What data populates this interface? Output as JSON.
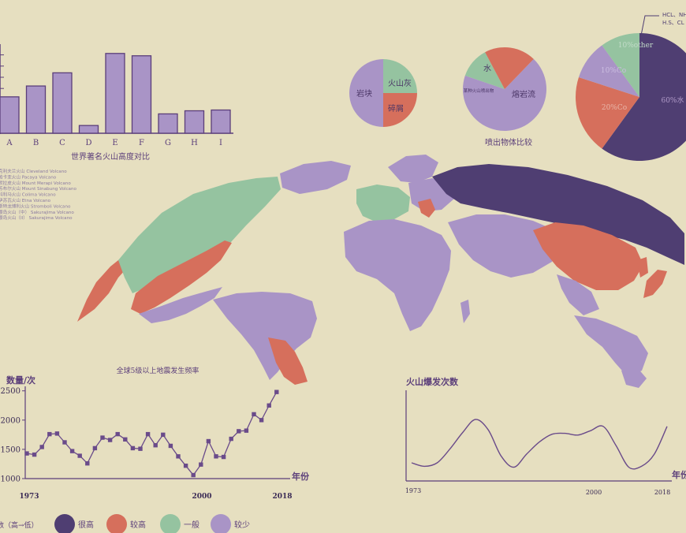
{
  "palette": {
    "very_high": "#4f3e72",
    "high": "#d66f5c",
    "medium": "#95c3a0",
    "low": "#a994c6",
    "axis": "#5b3e7a",
    "bg": "#e6dfc0"
  },
  "chart_data": [
    {
      "type": "bar",
      "title": "世界著名火山高度对比",
      "categories": [
        "A",
        "B",
        "C",
        "D",
        "E",
        "F",
        "G",
        "H",
        "I"
      ],
      "values": [
        4.7,
        6.1,
        7.8,
        1.0,
        10.3,
        10.0,
        2.5,
        2.9,
        3.0
      ],
      "ylim": [
        0,
        11.5
      ]
    },
    {
      "type": "pie",
      "slices": [
        {
          "label": "岩块",
          "value": 50,
          "color": "#a994c6"
        },
        {
          "label": "火山灰",
          "value": 25,
          "color": "#95c3a0"
        },
        {
          "label": "碎屑",
          "value": 25,
          "color": "#d66f5c"
        }
      ]
    },
    {
      "type": "pie",
      "title": "喷出物体比较",
      "slices": [
        {
          "label": "熔岩流",
          "value": 68,
          "color": "#a994c6"
        },
        {
          "label": "某种火山喷出物",
          "value": 12,
          "color": "#95c3a0"
        },
        {
          "label": "水",
          "value": 20,
          "color": "#d66f5c"
        }
      ]
    },
    {
      "type": "pie",
      "slices": [
        {
          "label": "60%水",
          "value": 60,
          "color": "#4f3e72"
        },
        {
          "label": "20%Co",
          "value": 20,
          "color": "#d66f5c"
        },
        {
          "label": "10%Co",
          "value": 10,
          "color": "#a994c6"
        },
        {
          "label": "10%other",
          "value": 10,
          "color": "#95c3a0"
        }
      ],
      "callout": [
        "HCL、NH",
        "H.S、CL"
      ]
    },
    {
      "type": "line",
      "title": "全球5级以上地震发生频率",
      "ylabel": "数量/次",
      "xlabel": "年份",
      "yticks": [
        1000,
        1500,
        2000,
        2500
      ],
      "ylim": [
        1000,
        2600
      ],
      "x": [
        1973,
        1975,
        1977,
        1979,
        1981,
        1983,
        1985,
        1987,
        1989,
        1991,
        1993,
        1995,
        1997,
        1999,
        2001,
        2003,
        2005,
        2007,
        2009,
        2011,
        2013,
        2015,
        2017,
        2019,
        2021,
        2023,
        2025,
        2027,
        2029,
        2031,
        2033
      ],
      "values": [
        1430,
        1410,
        1540,
        1760,
        1770,
        1620,
        1470,
        1390,
        1260,
        1520,
        1700,
        1660,
        1760,
        1670,
        1520,
        1510,
        1760,
        1570,
        1750,
        1560,
        1380,
        1220,
        1060,
        1240,
        1640,
        1380,
        1370,
        1680,
        1810,
        1820,
        2100
      ],
      "extra_points": [
        [
          2035,
          2000
        ],
        [
          2037,
          2250
        ],
        [
          2039,
          2480
        ]
      ],
      "xtick_labels": [
        {
          "x": 1973,
          "label": "1973"
        },
        {
          "x": 2000,
          "label": "2000"
        },
        {
          "x": 2018,
          "label": "2018"
        }
      ]
    },
    {
      "type": "line",
      "title": "火山爆发次数",
      "xlabel": "年份",
      "xtick_labels": [
        "1973",
        "2000",
        "2018"
      ],
      "x": [
        0,
        0.05,
        0.1,
        0.15,
        0.2,
        0.25,
        0.3,
        0.35,
        0.4,
        0.45,
        0.5,
        0.55,
        0.6,
        0.65,
        0.7,
        0.75,
        0.8,
        0.85,
        0.9,
        0.95,
        1.0
      ],
      "values": [
        0.1,
        0.06,
        0.1,
        0.26,
        0.45,
        0.6,
        0.48,
        0.18,
        0.05,
        0.2,
        0.34,
        0.43,
        0.44,
        0.42,
        0.47,
        0.52,
        0.3,
        0.05,
        0.06,
        0.2,
        0.52
      ]
    }
  ],
  "legend": {
    "prefix": "数（高→低）",
    "items": [
      {
        "label": "很高",
        "color": "#4f3e72"
      },
      {
        "label": "较高",
        "color": "#d66f5c"
      },
      {
        "label": "一般",
        "color": "#95c3a0"
      },
      {
        "label": "较少",
        "color": "#a994c6"
      }
    ]
  },
  "volcano_list": [
    "克利夫兰火山 Cleveland Volcano",
    "帕卡亚火山 Pacaya Volcano",
    "默拉皮火山 Mount Merapi Volcano",
    "苏布尔火山 Mount Sinabung Volcano",
    "科利马火山 Colima Volcano",
    "伊苏瓦火山 Etna Volcano",
    "斯特龙博利火山 Stromboli Volcano",
    "樱岛火山（中） Sakurajima Volcano",
    "樱岛火山（II） Sakurajima Volcano"
  ]
}
